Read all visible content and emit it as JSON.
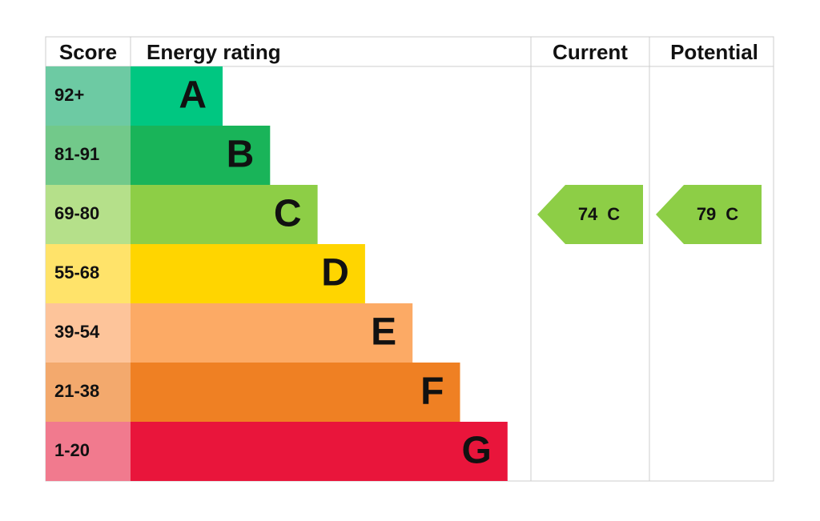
{
  "header": {
    "score": "Score",
    "rating": "Energy rating",
    "current": "Current",
    "potential": "Potential"
  },
  "bands": [
    {
      "score": "92+",
      "letter": "A",
      "color": "#00c781",
      "light": "#6dcaa3"
    },
    {
      "score": "81-91",
      "letter": "B",
      "color": "#19b459",
      "light": "#72c98a"
    },
    {
      "score": "69-80",
      "letter": "C",
      "color": "#8dce46",
      "light": "#b5e08a"
    },
    {
      "score": "55-68",
      "letter": "D",
      "color": "#ffd500",
      "light": "#ffe36a"
    },
    {
      "score": "39-54",
      "letter": "E",
      "color": "#fcaa65",
      "light": "#fdc49a"
    },
    {
      "score": "21-38",
      "letter": "F",
      "color": "#ef8023",
      "light": "#f3a96d"
    },
    {
      "score": "1-20",
      "letter": "G",
      "color": "#e9153b",
      "light": "#f17a8e"
    }
  ],
  "current": {
    "value": 74,
    "letter": "C"
  },
  "potential": {
    "value": 79,
    "letter": "C"
  }
}
